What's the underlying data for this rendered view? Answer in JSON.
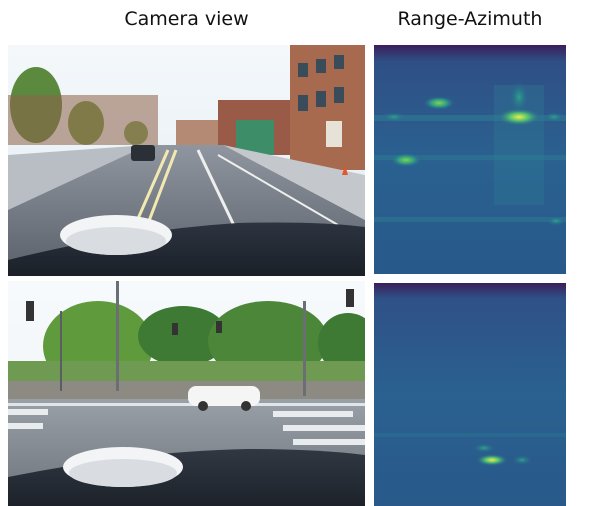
{
  "headers": {
    "camera": "Camera view",
    "range_azimuth": "Range-Azimuth"
  },
  "colors": {
    "heatmap_base": "#2a5c8c",
    "heatmap_dark": "#3b1f5a",
    "heatmap_hot": "#e8e84a",
    "heatmap_green": "#3fb07a"
  },
  "scenes": [
    {
      "name": "urban-street-scene",
      "heatmap_peaks": 6
    },
    {
      "name": "intersection-scene",
      "heatmap_peaks": 2
    }
  ]
}
